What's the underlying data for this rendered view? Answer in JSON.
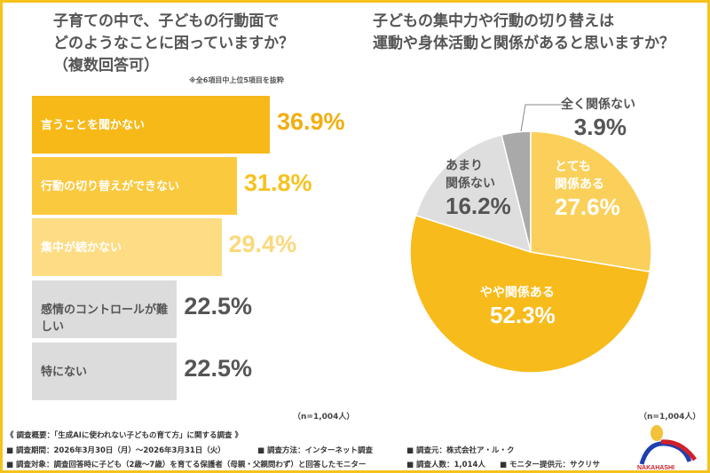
{
  "left": {
    "title_lines": [
      "子育ての中で、子どもの行動面で",
      "どのようなことに困っていますか？",
      "（複数回答可）"
    ],
    "note": "※全6項目中上位5項目を抜粋",
    "n": "（n=1,004人）"
  },
  "right": {
    "title_lines": [
      "子どもの集中力や行動の切り替えは",
      "運動や身体活動と関係があると思いますか？"
    ],
    "n": "（n=1,004人）"
  },
  "chart_data": [
    {
      "type": "bar",
      "orientation": "horizontal",
      "categories": [
        "言うことを聞かない",
        "行動の切り替えができない",
        "集中が続かない",
        "感情のコントロールが難しい",
        "特にない"
      ],
      "values": [
        36.9,
        31.8,
        29.4,
        22.5,
        22.5
      ],
      "labels": [
        "36.9%",
        "31.8%",
        "29.4%",
        "22.5%",
        "22.5%"
      ],
      "colors": [
        "#f7b917",
        "#fbc93e",
        "#fddc84",
        "#dcdcdc",
        "#dcdcdc"
      ],
      "label_colors": [
        "#f3ad10",
        "#f7c21f",
        "#fbd97a",
        "#555555",
        "#555555"
      ]
    },
    {
      "type": "pie",
      "slices": [
        {
          "name": "とても関係ある",
          "value": 27.6,
          "label": "27.6%",
          "color": "#fbd05a"
        },
        {
          "name": "やや関係ある",
          "value": 52.3,
          "label": "52.3%",
          "color": "#f7bb1b"
        },
        {
          "name": "あまり関係ない",
          "value": 16.2,
          "label": "16.2%",
          "color": "#dedede"
        },
        {
          "name": "全く関係ない",
          "value": 3.9,
          "label": "3.9%",
          "color": "#a9a9a9"
        }
      ],
      "start": "top",
      "direction": "clockwise"
    }
  ],
  "pie_labels": {
    "s0": [
      "とても",
      "関係ある"
    ],
    "s1": [
      "やや関係ある"
    ],
    "s2": [
      "あまり",
      "関係ない"
    ],
    "s3": [
      "全く関係ない"
    ]
  },
  "footer": {
    "summary": "《 調査概要：「生成AIに使われない子どもの育て方」に関する調査 》",
    "period": "■ 調査期間：2026年3月30日（月）～2026年3月31日（火）",
    "method": "■ 調査方法：インターネット調査",
    "source": "■ 調査元：株式会社ア・ル・ク",
    "target": "■ 調査対象：調査回答時に子ども（2歳～7歳）を育てる保護者（母親・父親問わず）と回答したモニター",
    "count": "■ 調査人数：1,014人",
    "provider": "■ モニター提供元：サクリサ"
  },
  "logo": {
    "text": "NAKAHASHI"
  },
  "colors": {
    "frame": "#f6c21c",
    "text": "#555555"
  }
}
